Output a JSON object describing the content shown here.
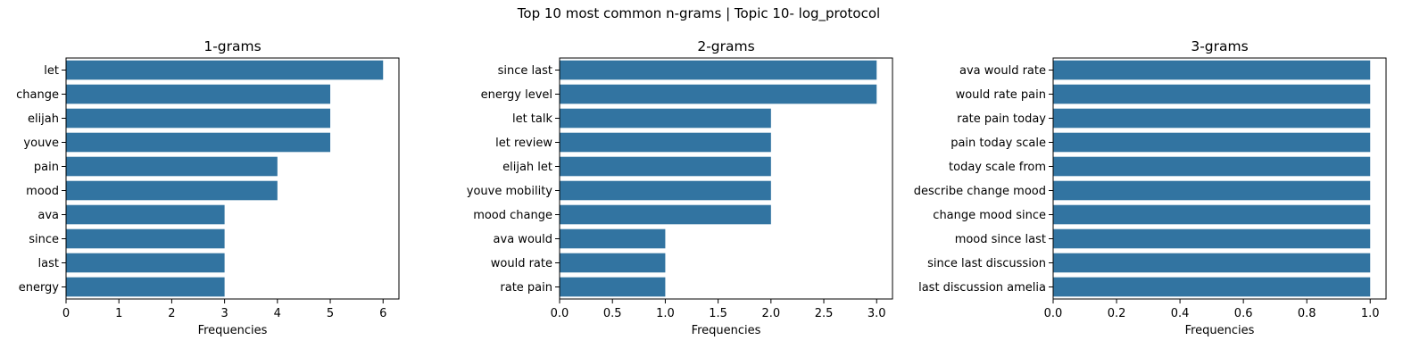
{
  "suptitle": "Top 10 most common n-grams | Topic 10- log_protocol",
  "colors": {
    "bar": "#3274a1",
    "axis": "#000000"
  },
  "chart_data": [
    {
      "type": "bar",
      "orientation": "horizontal",
      "title": "1-grams",
      "xlabel": "Frequencies",
      "categories": [
        "let",
        "change",
        "elijah",
        "youve",
        "pain",
        "mood",
        "ava",
        "since",
        "last",
        "energy"
      ],
      "values": [
        6,
        5,
        5,
        5,
        4,
        4,
        3,
        3,
        3,
        3
      ],
      "xlim": [
        0,
        6.3
      ],
      "xticks": [
        0,
        1,
        2,
        3,
        4,
        5,
        6
      ],
      "xtick_labels": [
        "0",
        "1",
        "2",
        "3",
        "4",
        "5",
        "6"
      ]
    },
    {
      "type": "bar",
      "orientation": "horizontal",
      "title": "2-grams",
      "xlabel": "Frequencies",
      "categories": [
        "since last",
        "energy level",
        "let talk",
        "let review",
        "elijah let",
        "youve mobility",
        "mood change",
        "ava would",
        "would rate",
        "rate pain"
      ],
      "values": [
        3,
        3,
        2,
        2,
        2,
        2,
        2,
        1,
        1,
        1
      ],
      "xlim": [
        0,
        3.15
      ],
      "xticks": [
        0,
        0.5,
        1,
        1.5,
        2,
        2.5,
        3
      ],
      "xtick_labels": [
        "0.0",
        "0.5",
        "1.0",
        "1.5",
        "2.0",
        "2.5",
        "3.0"
      ]
    },
    {
      "type": "bar",
      "orientation": "horizontal",
      "title": "3-grams",
      "xlabel": "Frequencies",
      "categories": [
        "ava would rate",
        "would rate pain",
        "rate pain today",
        "pain today scale",
        "today scale from",
        "describe change mood",
        "change mood since",
        "mood since last",
        "since last discussion",
        "last discussion amelia"
      ],
      "values": [
        1,
        1,
        1,
        1,
        1,
        1,
        1,
        1,
        1,
        1
      ],
      "xlim": [
        0,
        1.05
      ],
      "xticks": [
        0,
        0.2,
        0.4,
        0.6,
        0.8,
        1.0
      ],
      "xtick_labels": [
        "0.0",
        "0.2",
        "0.4",
        "0.6",
        "0.8",
        "1.0"
      ]
    }
  ]
}
